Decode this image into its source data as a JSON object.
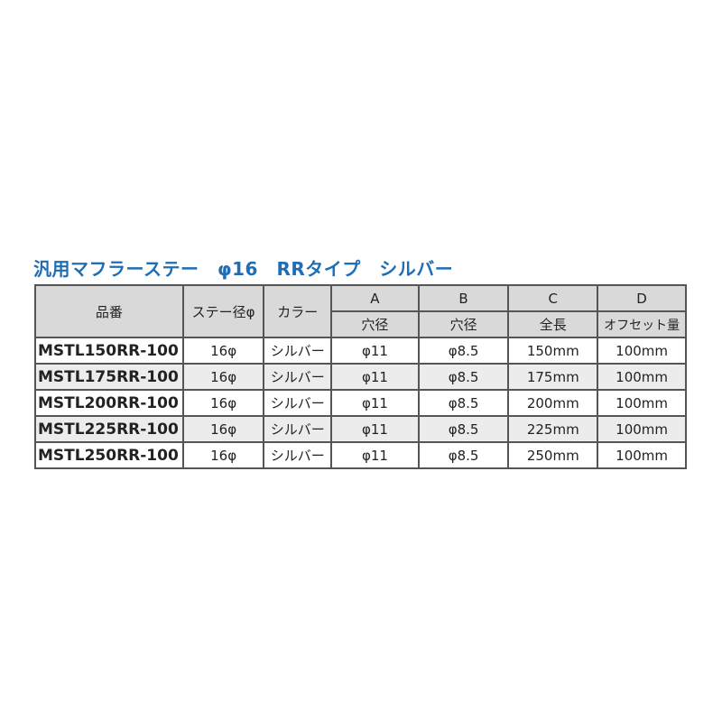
{
  "title": "汎用マフラーステー　φ16　RRタイプ　シルバー",
  "headers": {
    "part_no": "品番",
    "stay_diameter": "ステー径φ",
    "color": "カラー",
    "a": "A",
    "b": "B",
    "c": "C",
    "d": "D",
    "a_sub": "穴径",
    "b_sub": "穴径",
    "c_sub": "全長",
    "d_sub": "オフセット量"
  },
  "rows": [
    {
      "part_no": "MSTL150RR-100",
      "stay": "16φ",
      "color": "シルバー",
      "a": "φ11",
      "b": "φ8.5",
      "c": "150mm",
      "d": "100mm"
    },
    {
      "part_no": "MSTL175RR-100",
      "stay": "16φ",
      "color": "シルバー",
      "a": "φ11",
      "b": "φ8.5",
      "c": "175mm",
      "d": "100mm"
    },
    {
      "part_no": "MSTL200RR-100",
      "stay": "16φ",
      "color": "シルバー",
      "a": "φ11",
      "b": "φ8.5",
      "c": "200mm",
      "d": "100mm"
    },
    {
      "part_no": "MSTL225RR-100",
      "stay": "16φ",
      "color": "シルバー",
      "a": "φ11",
      "b": "φ8.5",
      "c": "225mm",
      "d": "100mm"
    },
    {
      "part_no": "MSTL250RR-100",
      "stay": "16φ",
      "color": "シルバー",
      "a": "φ11",
      "b": "φ8.5",
      "c": "250mm",
      "d": "100mm"
    }
  ]
}
